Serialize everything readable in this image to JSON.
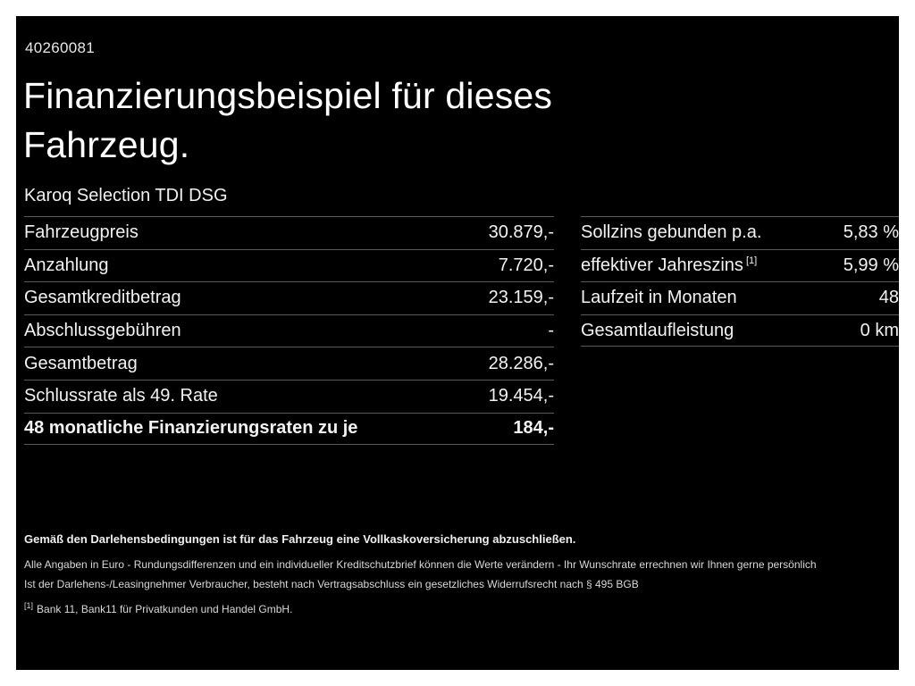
{
  "page": {
    "vehicle_id": "40260081",
    "title_line1": "Finanzierungsbeispiel für dieses",
    "title_line2": "Fahrzeug.",
    "subtitle": "Karoq Selection TDI DSG"
  },
  "tables": {
    "left": {
      "rows": [
        {
          "label": "Fahrzeugpreis",
          "value": "30.879,-"
        },
        {
          "label": "Anzahlung",
          "value": "7.720,-"
        },
        {
          "label": "Gesamtkreditbetrag",
          "value": "23.159,-"
        },
        {
          "label": "Abschlussgebühren",
          "value": "-"
        },
        {
          "label": "Gesamtbetrag",
          "value": "28.286,-"
        },
        {
          "label": "Schlussrate als 49. Rate",
          "value": "19.454,-"
        },
        {
          "label": "48 monatliche Finanzierungsraten zu je",
          "value": "184,-"
        }
      ]
    },
    "right": {
      "rows": [
        {
          "label": "Sollzins gebunden p.a.",
          "value": "5,83 %"
        },
        {
          "label": "effektiver Jahreszins",
          "label_sup": "[1]",
          "value": "5,99 %"
        },
        {
          "label": "Laufzeit in Monaten",
          "value": "48"
        },
        {
          "label": "Gesamtlaufleistung",
          "value": "0 km"
        }
      ]
    }
  },
  "disclaimers": {
    "insurance_bold": "Gemäß den Darlehensbedingungen ist für das Fahrzeug eine Vollkaskoversicherung abzuschließen.",
    "euro_note": "Alle Angaben in Euro - Rundungsdifferenzen und ein individueller Kreditschutzbrief können die Werte verändern - Ihr Wunschrate errechnen wir Ihnen gerne persönlich",
    "withdrawal_note": "Ist der Darlehens-/Leasingnehmer Verbraucher, besteht nach Vertragsabschluss ein gesetzliches Widerrufsrecht nach § 495 BGB",
    "footnote_marker": "[1]",
    "footnote_text": "Bank 11, Bank11 für Privatkunden und Handel GmbH."
  },
  "colors": {
    "background": "#000000",
    "frame": "#ffffff",
    "text": "#f2f2f2",
    "divider": "#5a5a5a"
  }
}
